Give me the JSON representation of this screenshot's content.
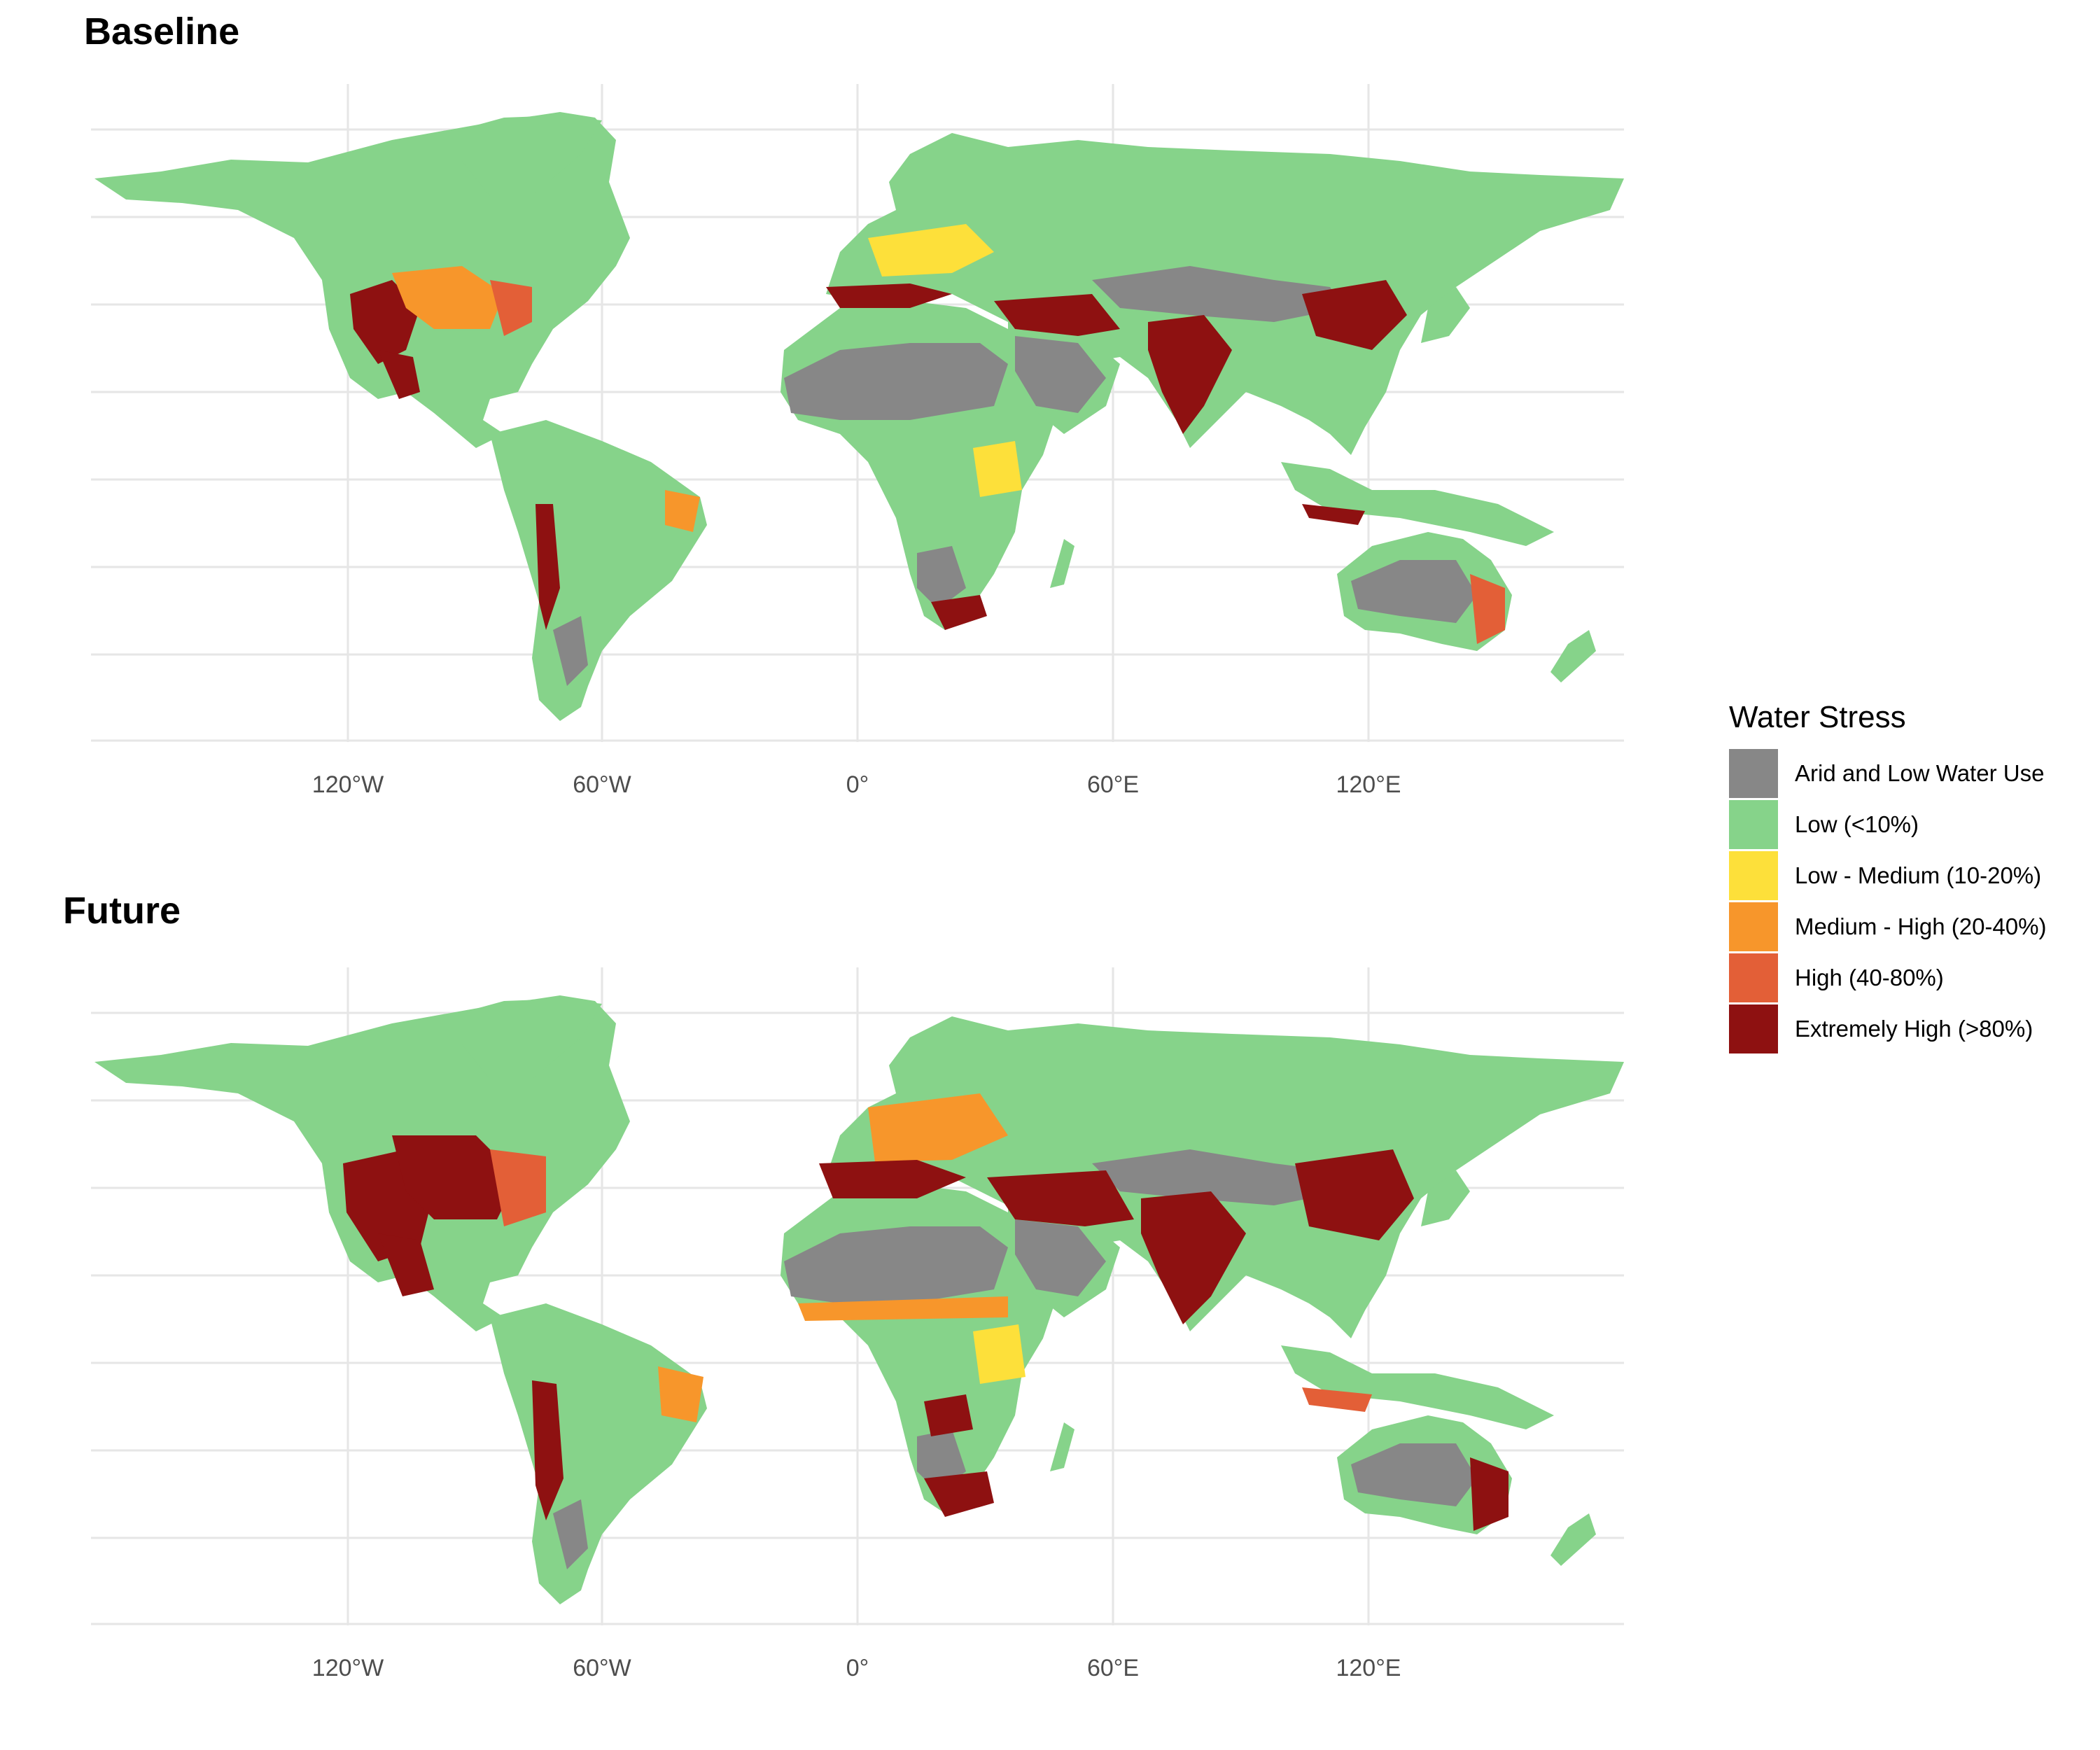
{
  "panels": [
    {
      "id": "baseline",
      "title": "Baseline"
    },
    {
      "id": "future",
      "title": "Future"
    }
  ],
  "x_axis_ticks": [
    "120°W",
    "60°W",
    "0°",
    "60°E",
    "120°E"
  ],
  "legend": {
    "title": "Water Stress",
    "items": [
      {
        "label": "Arid and Low Water Use",
        "color": "#878787"
      },
      {
        "label": "Low (<10%)",
        "color": "#86d38a"
      },
      {
        "label": "Low - Medium (10-20%)",
        "color": "#fde03a"
      },
      {
        "label": "Medium - High (20-40%)",
        "color": "#f7962b"
      },
      {
        "label": "High (40-80%)",
        "color": "#e35f37"
      },
      {
        "label": "Extremely High (>80%)",
        "color": "#8e1111"
      }
    ]
  }
}
